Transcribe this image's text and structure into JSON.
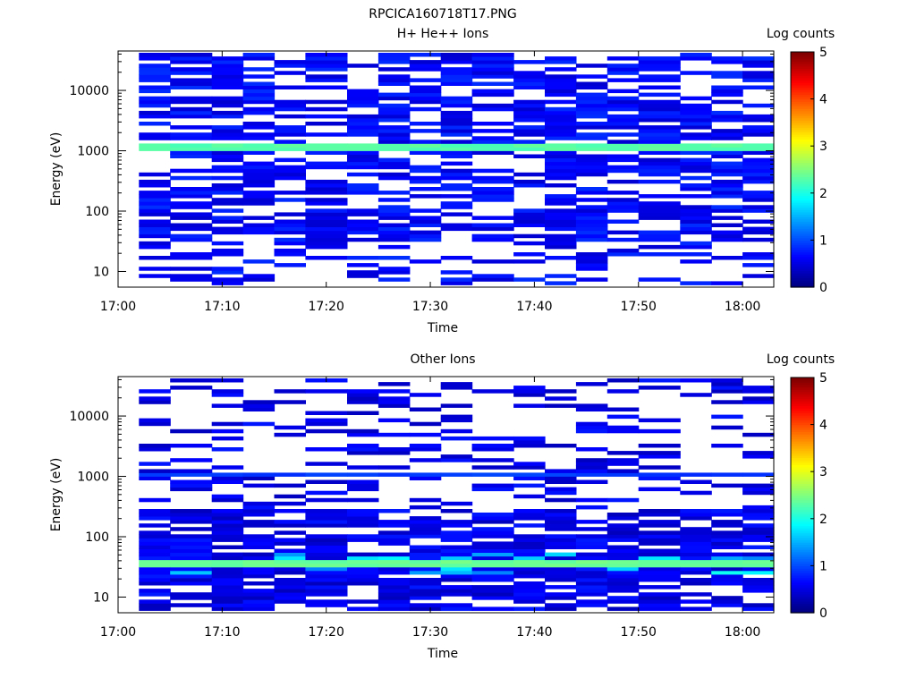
{
  "figure_title": "RPCICA160718T17.PNG",
  "chart_data": [
    {
      "type": "heatmap",
      "title": "H+ He++ Ions",
      "xlabel": "Time",
      "ylabel": "Energy (eV)",
      "x_ticks": [
        "17:00",
        "17:10",
        "17:20",
        "17:30",
        "17:40",
        "17:50",
        "18:00"
      ],
      "x_range": [
        "17:00",
        "18:03"
      ],
      "y_ticks": [
        "10",
        "100",
        "1000",
        "10000"
      ],
      "y_scale": "log",
      "y_range": [
        5.5,
        45000
      ],
      "colorbar": {
        "label": "Log counts",
        "ticks": [
          "0",
          "1",
          "2",
          "3",
          "4",
          "5"
        ],
        "range": [
          0,
          5
        ],
        "colormap": "jet"
      },
      "time_bins_start": [
        "17:02",
        "17:05",
        "17:09",
        "17:12",
        "17:15",
        "17:18",
        "17:22",
        "17:25",
        "17:28",
        "17:31",
        "17:34",
        "17:38",
        "17:41",
        "17:44",
        "17:47",
        "17:50",
        "17:54",
        "17:57",
        "18:00"
      ],
      "features": [
        {
          "description": "bright band",
          "energy_ev": 1100,
          "log_counts": 2.3
        },
        {
          "description": "sparse counts",
          "energy_range_ev": [
            6,
            40000
          ],
          "log_counts": 0.4
        }
      ]
    },
    {
      "type": "heatmap",
      "title": "Other Ions",
      "xlabel": "Time",
      "ylabel": "Energy (eV)",
      "x_ticks": [
        "17:00",
        "17:10",
        "17:20",
        "17:30",
        "17:40",
        "17:50",
        "18:00"
      ],
      "x_range": [
        "17:00",
        "18:03"
      ],
      "y_ticks": [
        "10",
        "100",
        "1000",
        "10000"
      ],
      "y_scale": "log",
      "y_range": [
        5.5,
        45000
      ],
      "colorbar": {
        "label": "Log counts",
        "ticks": [
          "0",
          "1",
          "2",
          "3",
          "4",
          "5"
        ],
        "range": [
          0,
          5
        ],
        "colormap": "jet"
      },
      "time_bins_start": [
        "17:02",
        "17:05",
        "17:09",
        "17:12",
        "17:15",
        "17:18",
        "17:22",
        "17:25",
        "17:28",
        "17:31",
        "17:34",
        "17:38",
        "17:41",
        "17:44",
        "17:47",
        "17:50",
        "17:54",
        "17:57",
        "18:00"
      ],
      "features": [
        {
          "description": "bright band",
          "energy_ev": 37,
          "log_counts": 2.4
        },
        {
          "description": "secondary band",
          "energy_ev": 1080,
          "log_counts": 0.9
        },
        {
          "description": "sparse counts",
          "energy_range_ev": [
            6,
            40000
          ],
          "log_counts": 0.3
        }
      ]
    }
  ]
}
